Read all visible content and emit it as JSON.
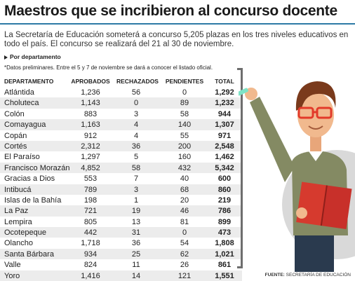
{
  "title": "Maestros que se incribieron al concurso docente",
  "intro": "La Secretaría de Educación someterá a concurso 5,205 plazas en los tres niveles educativos en todo el país. El concurso se realizará del 21 al 30 de noviembre.",
  "subhead": "Por departamento",
  "note": "*Datos preliminares. Entre el 5 y 7 de noviembre se dará a conocer el listado oficial.",
  "headers": {
    "departamento": "DEPARTAMENTO",
    "aprobados": "APROBADOS",
    "rechazados": "RECHAZADOS",
    "pendientes": "PENDIENTES",
    "total": "TOTAL"
  },
  "rows": [
    {
      "departamento": "Atlántida",
      "aprobados": "1,236",
      "rechazados": "56",
      "pendientes": "0",
      "total": "1,292"
    },
    {
      "departamento": "Choluteca",
      "aprobados": "1,143",
      "rechazados": "0",
      "pendientes": "89",
      "total": "1,232"
    },
    {
      "departamento": "Colón",
      "aprobados": "883",
      "rechazados": "3",
      "pendientes": "58",
      "total": "944"
    },
    {
      "departamento": "Comayagua",
      "aprobados": "1,163",
      "rechazados": "4",
      "pendientes": "140",
      "total": "1,307"
    },
    {
      "departamento": "Copán",
      "aprobados": "912",
      "rechazados": "4",
      "pendientes": "55",
      "total": "971"
    },
    {
      "departamento": "Cortés",
      "aprobados": "2,312",
      "rechazados": "36",
      "pendientes": "200",
      "total": "2,548"
    },
    {
      "departamento": "El Paraíso",
      "aprobados": "1,297",
      "rechazados": "5",
      "pendientes": "160",
      "total": "1,462"
    },
    {
      "departamento": "Francisco Morazán",
      "aprobados": "4,852",
      "rechazados": "58",
      "pendientes": "432",
      "total": "5,342"
    },
    {
      "departamento": "Gracias a Dios",
      "aprobados": "553",
      "rechazados": "7",
      "pendientes": "40",
      "total": "600"
    },
    {
      "departamento": "Intibucá",
      "aprobados": "789",
      "rechazados": "3",
      "pendientes": "68",
      "total": "860"
    },
    {
      "departamento": "Islas de la Bahía",
      "aprobados": "198",
      "rechazados": "1",
      "pendientes": "20",
      "total": "219"
    },
    {
      "departamento": "La Paz",
      "aprobados": "721",
      "rechazados": "19",
      "pendientes": "46",
      "total": "786"
    },
    {
      "departamento": "Lempira",
      "aprobados": "805",
      "rechazados": "13",
      "pendientes": "81",
      "total": "899"
    },
    {
      "departamento": "Ocotepeque",
      "aprobados": "442",
      "rechazados": "31",
      "pendientes": "0",
      "total": "473"
    },
    {
      "departamento": "Olancho",
      "aprobados": "1,718",
      "rechazados": "36",
      "pendientes": "54",
      "total": "1,808"
    },
    {
      "departamento": "Santa Bárbara",
      "aprobados": "934",
      "rechazados": "25",
      "pendientes": "62",
      "total": "1,021"
    },
    {
      "departamento": "Valle",
      "aprobados": "824",
      "rechazados": "11",
      "pendientes": "26",
      "total": "861"
    },
    {
      "departamento": "Yoro",
      "aprobados": "1,416",
      "rechazados": "14",
      "pendientes": "121",
      "total": "1,551"
    }
  ],
  "source_label": "FUENTE:",
  "source_text": "SECRETARÍA DE EDUCACIÓN",
  "colors": {
    "accent": "#2d7aa6",
    "row_alt": "#ececec",
    "book": "#d63a2e",
    "shirt": "#848a63",
    "hair": "#7a3a1c",
    "glasses": "#e23a2a",
    "chalk": "#7fe3c6"
  },
  "icons": {
    "illustration": "teacher-with-book-illustration",
    "subhead_marker": "triangle-right-icon"
  }
}
